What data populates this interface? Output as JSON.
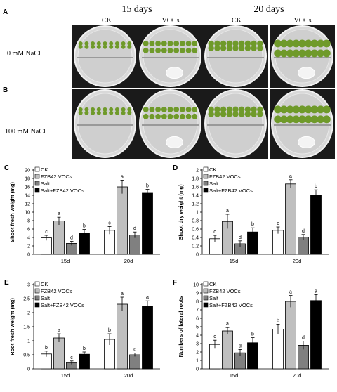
{
  "figure": {
    "panel_A": "A",
    "panel_B": "B",
    "time_15": "15 days",
    "time_20": "20 days",
    "ck_1": "CK",
    "vocs_1": "VOCs",
    "ck_2": "CK",
    "vocs_2": "VOCs",
    "row_0": "0 mM NaCl",
    "row_100": "100 mM NaCl"
  },
  "colors": {
    "ck": "#ffffff",
    "fzb42": "#bfbfbf",
    "salt": "#808080",
    "salt_fzb42": "#000000",
    "plate_bg": "#1a1a1a",
    "agar": "#d9d9d9",
    "plant": "#6f9a2a"
  },
  "chart_data": [
    {
      "panel": "C",
      "type": "bar",
      "ylabel": "Shoot fresh weight (mg)",
      "categories": [
        "15d",
        "20d"
      ],
      "ylim": [
        0,
        20
      ],
      "yticks": [
        0,
        2,
        4,
        6,
        8,
        10,
        12,
        14,
        16,
        18,
        20
      ],
      "series": [
        {
          "name": "CK",
          "values": [
            3.9,
            5.7
          ],
          "errors": [
            0.6,
            0.9
          ],
          "letters": [
            "c",
            "c"
          ]
        },
        {
          "name": "FZB42 VOCs",
          "values": [
            7.9,
            16.0
          ],
          "errors": [
            0.9,
            1.6
          ],
          "letters": [
            "a",
            "a"
          ]
        },
        {
          "name": "Salt",
          "values": [
            2.6,
            4.6
          ],
          "errors": [
            0.5,
            0.7
          ],
          "letters": [
            "d",
            "d"
          ]
        },
        {
          "name": "Salt+FZB42 VOCs",
          "values": [
            5.1,
            14.5
          ],
          "errors": [
            0.8,
            0.9
          ],
          "letters": [
            "b",
            "b"
          ]
        }
      ]
    },
    {
      "panel": "D",
      "type": "bar",
      "ylabel": "Shoot dry weight (mg)",
      "categories": [
        "15d",
        "20d"
      ],
      "ylim": [
        0,
        2
      ],
      "yticks": [
        0,
        0.2,
        0.4,
        0.6,
        0.8,
        1,
        1.2,
        1.4,
        1.6,
        1.8,
        2
      ],
      "series": [
        {
          "name": "CK",
          "values": [
            0.37,
            0.57
          ],
          "errors": [
            0.08,
            0.08
          ],
          "letters": [
            "c",
            "c"
          ]
        },
        {
          "name": "FZB42 VOCs",
          "values": [
            0.78,
            1.67
          ],
          "errors": [
            0.17,
            0.1
          ],
          "letters": [
            "a",
            "a"
          ]
        },
        {
          "name": "Salt",
          "values": [
            0.25,
            0.41
          ],
          "errors": [
            0.07,
            0.06
          ],
          "letters": [
            "d",
            "d"
          ]
        },
        {
          "name": "Salt+FZB42 VOCs",
          "values": [
            0.53,
            1.4
          ],
          "errors": [
            0.1,
            0.13
          ],
          "letters": [
            "b",
            "b"
          ]
        }
      ]
    },
    {
      "panel": "E",
      "type": "bar",
      "ylabel": "Root fresh weight (mg)",
      "categories": [
        "15d",
        "20d"
      ],
      "ylim": [
        0,
        3
      ],
      "yticks": [
        0,
        0.5,
        1,
        1.5,
        2,
        2.5,
        3
      ],
      "series": [
        {
          "name": "CK",
          "values": [
            0.53,
            1.05
          ],
          "errors": [
            0.1,
            0.2
          ],
          "letters": [
            "b",
            "b"
          ]
        },
        {
          "name": "FZB42 VOCs",
          "values": [
            1.1,
            2.3
          ],
          "errors": [
            0.15,
            0.25
          ],
          "letters": [
            "a",
            "a"
          ]
        },
        {
          "name": "Salt",
          "values": [
            0.22,
            0.5
          ],
          "errors": [
            0.06,
            0.06
          ],
          "letters": [
            "c",
            "c"
          ]
        },
        {
          "name": "Salt+FZB42 VOCs",
          "values": [
            0.52,
            2.22
          ],
          "errors": [
            0.08,
            0.2
          ],
          "letters": [
            "b",
            "a"
          ]
        }
      ]
    },
    {
      "panel": "F",
      "type": "bar",
      "ylabel": "Numbers of lateral roots",
      "categories": [
        "15d",
        "20d"
      ],
      "ylim": [
        0,
        10
      ],
      "yticks": [
        0,
        1,
        2,
        3,
        4,
        5,
        6,
        7,
        8,
        9,
        10
      ],
      "series": [
        {
          "name": "CK",
          "values": [
            2.9,
            4.7
          ],
          "errors": [
            0.5,
            0.6
          ],
          "letters": [
            "c",
            "b"
          ]
        },
        {
          "name": "FZB42 VOCs",
          "values": [
            4.5,
            8.0
          ],
          "errors": [
            0.4,
            0.7
          ],
          "letters": [
            "a",
            "a"
          ]
        },
        {
          "name": "Salt",
          "values": [
            1.9,
            2.8
          ],
          "errors": [
            0.4,
            0.5
          ],
          "letters": [
            "d",
            "d"
          ]
        },
        {
          "name": "Salt+FZB42 VOCs",
          "values": [
            3.1,
            8.1
          ],
          "errors": [
            0.6,
            0.7
          ],
          "letters": [
            "b",
            "a"
          ]
        }
      ]
    }
  ]
}
